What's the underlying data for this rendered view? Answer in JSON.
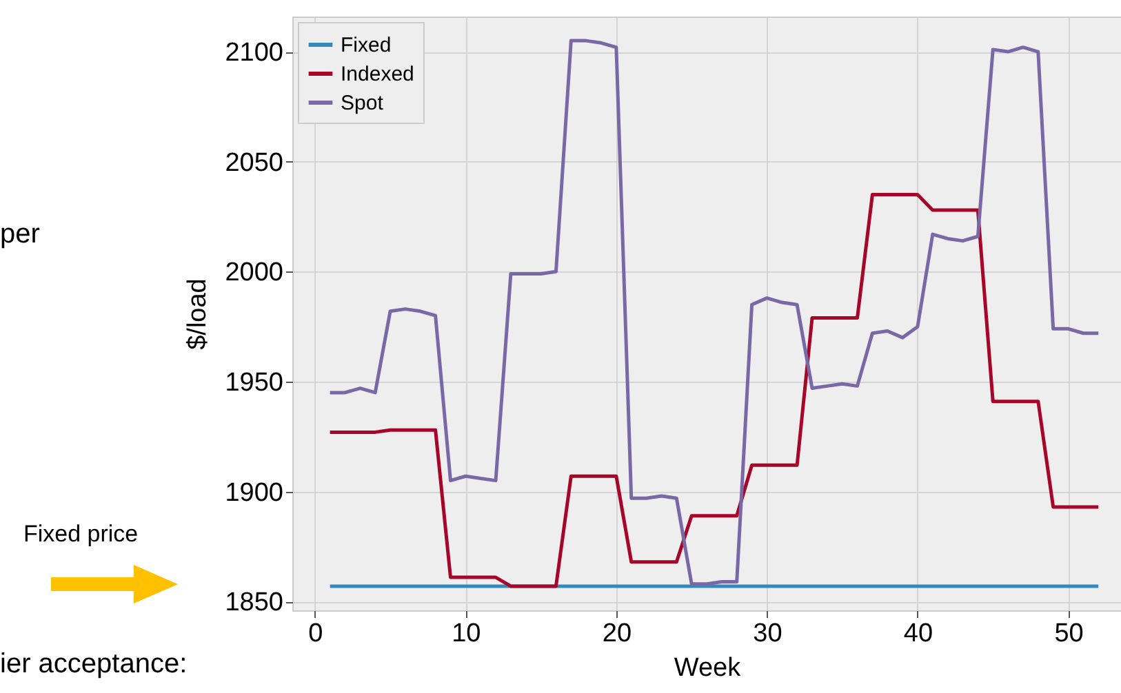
{
  "chart_data": {
    "type": "line",
    "xlabel": "Week",
    "ylabel": "$/load",
    "x": [
      1,
      2,
      3,
      4,
      5,
      6,
      7,
      8,
      9,
      10,
      11,
      12,
      13,
      14,
      15,
      16,
      17,
      18,
      19,
      20,
      21,
      22,
      23,
      24,
      25,
      26,
      27,
      28,
      29,
      30,
      31,
      32,
      33,
      34,
      35,
      36,
      37,
      38,
      39,
      40,
      41,
      42,
      43,
      44,
      45,
      46,
      47,
      48,
      49,
      50,
      51,
      52
    ],
    "series": [
      {
        "name": "Fixed",
        "color": "#348abd",
        "values": [
          1857,
          1857,
          1857,
          1857,
          1857,
          1857,
          1857,
          1857,
          1857,
          1857,
          1857,
          1857,
          1857,
          1857,
          1857,
          1857,
          1857,
          1857,
          1857,
          1857,
          1857,
          1857,
          1857,
          1857,
          1857,
          1857,
          1857,
          1857,
          1857,
          1857,
          1857,
          1857,
          1857,
          1857,
          1857,
          1857,
          1857,
          1857,
          1857,
          1857,
          1857,
          1857,
          1857,
          1857,
          1857,
          1857,
          1857,
          1857,
          1857,
          1857,
          1857,
          1857
        ]
      },
      {
        "name": "Indexed",
        "color": "#a60628",
        "values": [
          1927,
          1927,
          1927,
          1927,
          1928,
          1928,
          1928,
          1928,
          1861,
          1861,
          1861,
          1861,
          1857,
          1857,
          1857,
          1857,
          1907,
          1907,
          1907,
          1907,
          1868,
          1868,
          1868,
          1868,
          1889,
          1889,
          1889,
          1889,
          1912,
          1912,
          1912,
          1912,
          1979,
          1979,
          1979,
          1979,
          2035,
          2035,
          2035,
          2035,
          2028,
          2028,
          2028,
          2028,
          1941,
          1941,
          1941,
          1941,
          1893,
          1893,
          1893,
          1893
        ]
      },
      {
        "name": "Spot",
        "color": "#7a68a6",
        "values": [
          1945,
          1945,
          1947,
          1945,
          1982,
          1983,
          1982,
          1980,
          1905,
          1907,
          1906,
          1905,
          1999,
          1999,
          1999,
          2000,
          2105,
          2105,
          2104,
          2102,
          1897,
          1897,
          1898,
          1897,
          1858,
          1858,
          1859,
          1859,
          1985,
          1988,
          1986,
          1985,
          1947,
          1948,
          1949,
          1948,
          1972,
          1973,
          1970,
          1975,
          2017,
          2015,
          2014,
          2016,
          2101,
          2100,
          2102,
          2100,
          1974,
          1974,
          1972,
          1972
        ]
      }
    ],
    "xlim": [
      -1.5,
      53.5
    ],
    "xticks": [
      0,
      10,
      20,
      30,
      40,
      50
    ],
    "ylim": [
      1846,
      2116
    ],
    "yticks": [
      1850,
      1900,
      1950,
      2000,
      2050,
      2100
    ],
    "grid": true,
    "legend": "top left",
    "annotations": [
      "per",
      "Fixed price",
      "ier acceptance:"
    ]
  }
}
